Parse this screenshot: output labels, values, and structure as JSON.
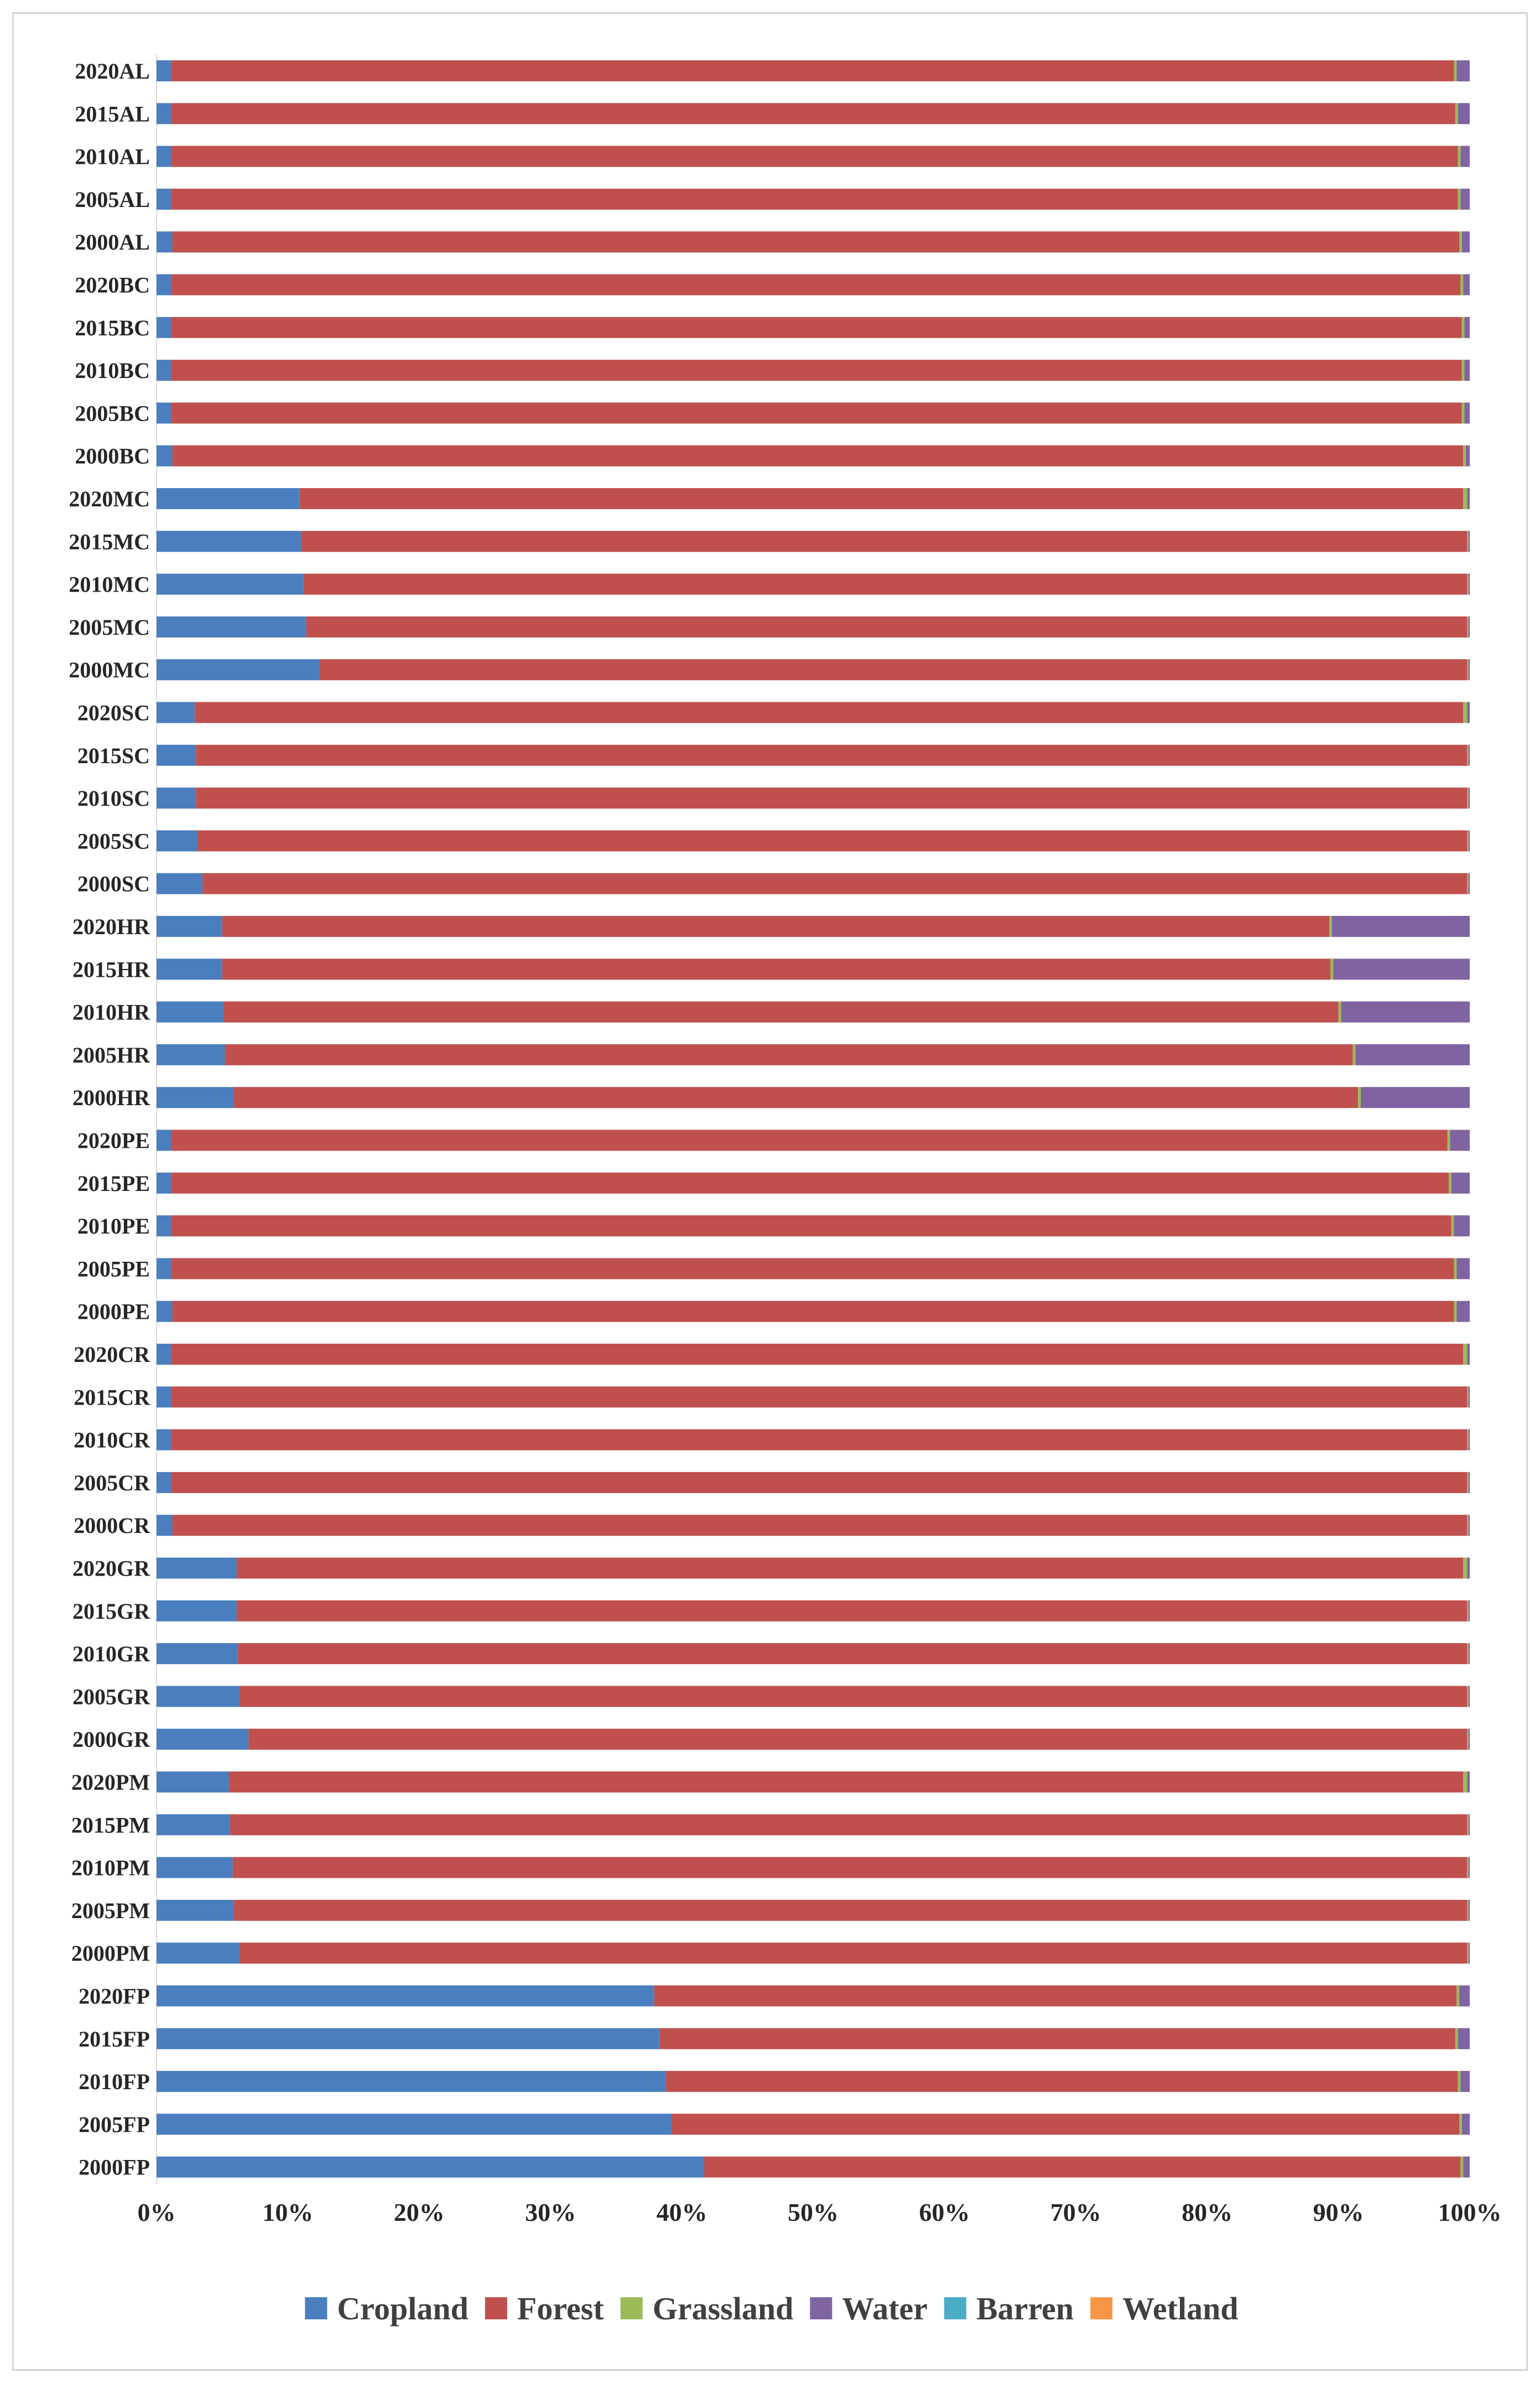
{
  "chart_data": {
    "type": "bar",
    "orientation": "horizontal",
    "stacked": true,
    "normalized": true,
    "categories": [
      "2020AL",
      "2015AL",
      "2010AL",
      "2005AL",
      "2000AL",
      "2020BC",
      "2015BC",
      "2010BC",
      "2005BC",
      "2000BC",
      "2020MC",
      "2015MC",
      "2010MC",
      "2005MC",
      "2000MC",
      "2020SC",
      "2015SC",
      "2010SC",
      "2005SC",
      "2000SC",
      "2020HR",
      "2015HR",
      "2010HR",
      "2005HR",
      "2000HR",
      "2020PE",
      "2015PE",
      "2010PE",
      "2005PE",
      "2000PE",
      "2020CR",
      "2015CR",
      "2010CR",
      "2005CR",
      "2000CR",
      "2020GR",
      "2015GR",
      "2010GR",
      "2005GR",
      "2000GR",
      "2020PM",
      "2015PM",
      "2010PM",
      "2005PM",
      "2000PM",
      "2020FP",
      "2015FP",
      "2010FP",
      "2005FP",
      "2000FP"
    ],
    "series": [
      {
        "name": "Cropland",
        "color": "#4a7ebf",
        "values": [
          1.1,
          1.1,
          1.1,
          1.1,
          1.2,
          1.1,
          1.1,
          1.1,
          1.1,
          1.2,
          10.9,
          11.0,
          11.2,
          11.4,
          12.4,
          2.9,
          3.0,
          3.0,
          3.1,
          3.5,
          5.0,
          5.0,
          5.1,
          5.2,
          5.9,
          1.1,
          1.1,
          1.1,
          1.1,
          1.2,
          1.1,
          1.1,
          1.1,
          1.1,
          1.2,
          6.1,
          6.1,
          6.2,
          6.3,
          7.0,
          5.5,
          5.6,
          5.8,
          5.9,
          6.3,
          37.9,
          38.3,
          38.8,
          39.2,
          41.7
        ]
      },
      {
        "name": "Forest",
        "color": "#c0504d",
        "values": [
          97.7,
          97.8,
          98.0,
          98.0,
          98.0,
          98.2,
          98.3,
          98.3,
          98.3,
          98.3,
          88.6,
          88.8,
          88.6,
          88.4,
          87.4,
          96.6,
          96.8,
          96.8,
          96.7,
          96.3,
          84.3,
          84.4,
          84.9,
          85.9,
          85.6,
          97.2,
          97.3,
          97.5,
          97.7,
          97.6,
          98.4,
          98.7,
          98.7,
          98.7,
          98.6,
          93.4,
          93.7,
          93.6,
          93.5,
          92.8,
          94.0,
          94.2,
          94.0,
          93.9,
          93.5,
          61.1,
          60.6,
          60.3,
          60.0,
          57.6
        ]
      },
      {
        "name": "Grassland",
        "color": "#9bbb59",
        "values": [
          0.2,
          0.2,
          0.2,
          0.2,
          0.2,
          0.2,
          0.2,
          0.2,
          0.2,
          0.2,
          0.3,
          0.1,
          0.1,
          0.1,
          0.1,
          0.3,
          0.1,
          0.1,
          0.1,
          0.1,
          0.2,
          0.2,
          0.2,
          0.2,
          0.2,
          0.2,
          0.2,
          0.2,
          0.2,
          0.2,
          0.3,
          0.1,
          0.1,
          0.1,
          0.1,
          0.3,
          0.1,
          0.1,
          0.1,
          0.1,
          0.3,
          0.1,
          0.1,
          0.1,
          0.1,
          0.2,
          0.2,
          0.2,
          0.2,
          0.2
        ]
      },
      {
        "name": "Water",
        "color": "#8064a2",
        "values": [
          1.0,
          0.9,
          0.7,
          0.7,
          0.6,
          0.5,
          0.4,
          0.4,
          0.4,
          0.3,
          0.2,
          0.1,
          0.1,
          0.1,
          0.1,
          0.2,
          0.1,
          0.1,
          0.1,
          0.1,
          10.5,
          10.4,
          9.8,
          8.7,
          8.3,
          1.5,
          1.4,
          1.2,
          1.0,
          1.0,
          0.2,
          0.1,
          0.1,
          0.1,
          0.1,
          0.2,
          0.1,
          0.1,
          0.1,
          0.1,
          0.2,
          0.1,
          0.1,
          0.1,
          0.1,
          0.8,
          0.9,
          0.7,
          0.6,
          0.5
        ]
      },
      {
        "name": "Barren",
        "color": "#4bacc6",
        "values": [
          0,
          0,
          0,
          0,
          0,
          0,
          0,
          0,
          0,
          0,
          0,
          0,
          0,
          0,
          0,
          0,
          0,
          0,
          0,
          0,
          0,
          0,
          0,
          0,
          0,
          0,
          0,
          0,
          0,
          0,
          0,
          0,
          0,
          0,
          0,
          0,
          0,
          0,
          0,
          0,
          0,
          0,
          0,
          0,
          0,
          0,
          0,
          0,
          0,
          0
        ]
      },
      {
        "name": "Wetland",
        "color": "#f79646",
        "values": [
          0,
          0,
          0,
          0,
          0,
          0,
          0,
          0,
          0,
          0,
          0,
          0,
          0,
          0,
          0,
          0,
          0,
          0,
          0,
          0,
          0,
          0,
          0,
          0,
          0,
          0,
          0,
          0,
          0,
          0,
          0,
          0,
          0,
          0,
          0,
          0,
          0,
          0,
          0,
          0,
          0,
          0,
          0,
          0,
          0,
          0,
          0,
          0,
          0,
          0
        ]
      }
    ],
    "xticks": [
      "0%",
      "10%",
      "20%",
      "30%",
      "40%",
      "50%",
      "60%",
      "70%",
      "80%",
      "90%",
      "100%"
    ],
    "xlim": [
      0,
      100
    ],
    "title": "",
    "xlabel": "",
    "ylabel": "",
    "grid": false,
    "legend_position": "bottom"
  }
}
